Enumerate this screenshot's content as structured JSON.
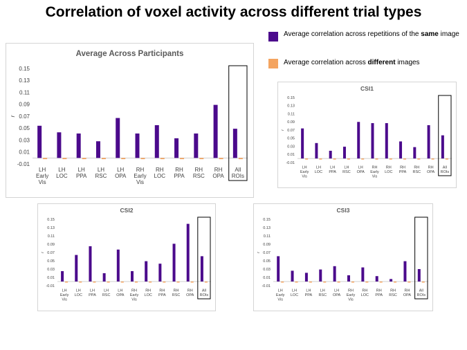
{
  "title": "Correlation of voxel activity across different trial types",
  "legend": {
    "same": {
      "pre": "Average correlation across repetitions of the ",
      "bold": "same",
      "post": " image",
      "color": "#4b0a8c"
    },
    "different": {
      "pre": "Average correlation across ",
      "bold": "different",
      "post": " images",
      "color": "#f4a460"
    }
  },
  "chart_data": [
    {
      "type": "bar",
      "title": "Average Across Participants",
      "ylabel": "r",
      "ylim": [
        -0.01,
        0.15
      ],
      "yticks": [
        "-0.01",
        "0.01",
        "0.03",
        "0.05",
        "0.07",
        "0.09",
        "0.11",
        "0.13",
        "0.15"
      ],
      "categories": [
        [
          "LH",
          "Early",
          "Vis"
        ],
        [
          "LH",
          "LOC"
        ],
        [
          "LH",
          "PPA"
        ],
        [
          "LH",
          "RSC"
        ],
        [
          "LH",
          "OPA"
        ],
        [
          "RH",
          "Early",
          "Vis"
        ],
        [
          "RH",
          "LOC"
        ],
        [
          "RH",
          "PPA"
        ],
        [
          "RH",
          "RSC"
        ],
        [
          "RH",
          "OPA"
        ],
        [
          "All",
          "ROIs"
        ]
      ],
      "series": [
        {
          "values": [
            0.054,
            0.043,
            0.041,
            0.028,
            0.067,
            0.041,
            0.055,
            0.033,
            0.041,
            0.089,
            0.049
          ]
        },
        {
          "values": [
            -0.002,
            -0.002,
            -0.002,
            -0.002,
            -0.002,
            -0.002,
            -0.002,
            -0.002,
            -0.002,
            -0.002,
            -0.002
          ]
        }
      ],
      "highlight_last": true
    },
    {
      "type": "bar",
      "title": "CSI1",
      "ylabel": "r",
      "ylim": [
        -0.01,
        0.15
      ],
      "yticks": [
        "-0.01",
        "0.01",
        "0.03",
        "0.05",
        "0.07",
        "0.09",
        "0.11",
        "0.13",
        "0.15"
      ],
      "categories": [
        [
          "LH",
          "Early",
          "Vis"
        ],
        [
          "LH",
          "LOC"
        ],
        [
          "LH",
          "PPA"
        ],
        [
          "LH",
          "RSC"
        ],
        [
          "LH",
          "OPA"
        ],
        [
          "RH",
          "Early",
          "Vis"
        ],
        [
          "RH",
          "LOC"
        ],
        [
          "RH",
          "PPA"
        ],
        [
          "RH",
          "RSC"
        ],
        [
          "RH",
          "OPA"
        ],
        [
          "All",
          "ROIs"
        ]
      ],
      "series": [
        {
          "values": [
            0.074,
            0.038,
            0.019,
            0.029,
            0.09,
            0.087,
            0.087,
            0.042,
            0.028,
            0.082,
            0.057
          ]
        },
        {
          "values": [
            -0.002,
            -0.002,
            -0.002,
            -0.002,
            -0.002,
            -0.002,
            -0.002,
            -0.002,
            -0.002,
            -0.002,
            -0.002
          ]
        }
      ],
      "highlight_last": true
    },
    {
      "type": "bar",
      "title": "CSI2",
      "ylabel": "r",
      "ylim": [
        -0.01,
        0.15
      ],
      "yticks": [
        "-0.01",
        "0.01",
        "0.03",
        "0.05",
        "0.07",
        "0.09",
        "0.11",
        "0.13",
        "0.15"
      ],
      "categories": [
        [
          "LH",
          "Early",
          "Vis"
        ],
        [
          "LH",
          "LOC"
        ],
        [
          "LH",
          "PPA"
        ],
        [
          "LH",
          "RSC"
        ],
        [
          "LH",
          "OPA"
        ],
        [
          "RH",
          "Early",
          "Vis"
        ],
        [
          "RH",
          "LOC"
        ],
        [
          "RH",
          "PPA"
        ],
        [
          "RH",
          "RSC"
        ],
        [
          "RH",
          "OPA"
        ],
        [
          "All",
          "ROIs"
        ]
      ],
      "series": [
        {
          "values": [
            0.025,
            0.064,
            0.085,
            0.02,
            0.077,
            0.025,
            0.049,
            0.043,
            0.091,
            0.139,
            0.061
          ]
        },
        {
          "values": [
            -0.002,
            -0.002,
            -0.002,
            -0.002,
            -0.002,
            -0.002,
            -0.002,
            -0.002,
            -0.002,
            -0.002,
            -0.002
          ]
        }
      ],
      "highlight_last": true
    },
    {
      "type": "bar",
      "title": "CSI3",
      "ylabel": "r",
      "ylim": [
        -0.01,
        0.15
      ],
      "yticks": [
        "-0.01",
        "0.01",
        "0.03",
        "0.05",
        "0.07",
        "0.09",
        "0.11",
        "0.13",
        "0.15"
      ],
      "categories": [
        [
          "LH",
          "Early",
          "Vis"
        ],
        [
          "LH",
          "LOC"
        ],
        [
          "LH",
          "PPA"
        ],
        [
          "LH",
          "RSC"
        ],
        [
          "LH",
          "OPA"
        ],
        [
          "RH",
          "Early",
          "Vis"
        ],
        [
          "RH",
          "LOC"
        ],
        [
          "RH",
          "PPA"
        ],
        [
          "RH",
          "RSC"
        ],
        [
          "RH",
          "OPA"
        ],
        [
          "All",
          "ROIs"
        ]
      ],
      "series": [
        {
          "values": [
            0.061,
            0.026,
            0.021,
            0.029,
            0.037,
            0.015,
            0.034,
            0.013,
            0.006,
            0.049,
            0.03
          ]
        },
        {
          "values": [
            -0.002,
            -0.002,
            -0.002,
            -0.002,
            -0.002,
            -0.002,
            -0.002,
            -0.002,
            -0.002,
            -0.002,
            -0.002
          ]
        }
      ],
      "highlight_last": true
    }
  ]
}
